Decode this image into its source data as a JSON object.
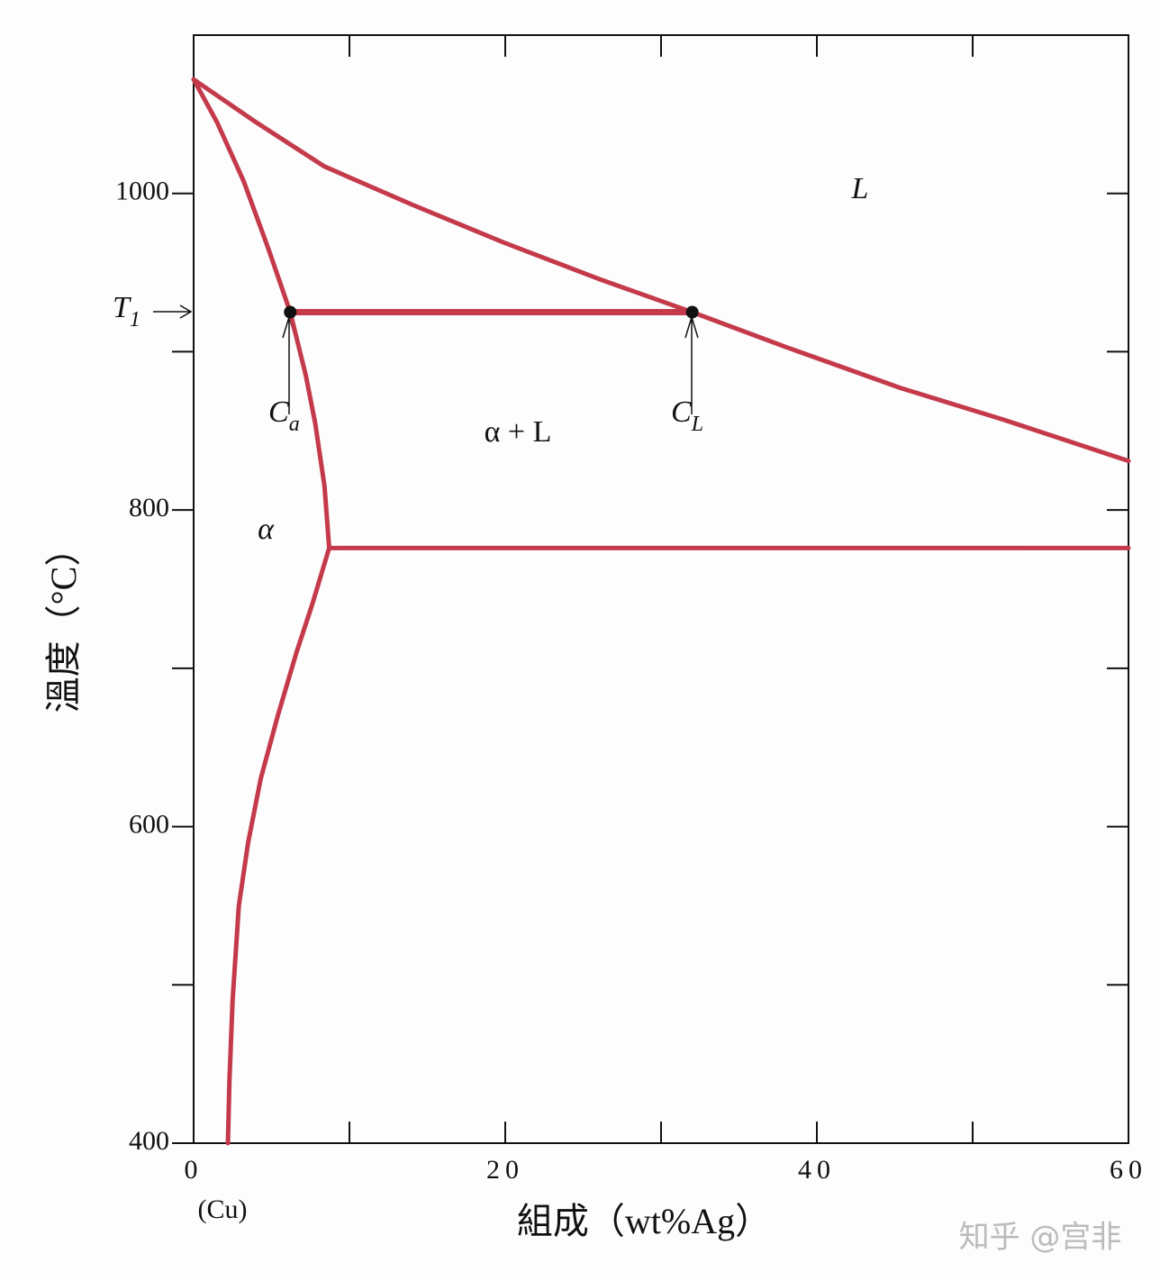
{
  "chart_data": {
    "type": "line",
    "x_label": "組成（wt%Ag）",
    "y_label": "溫度（°C）",
    "x_origin_note": "(Cu)",
    "xlim": [
      0,
      60
    ],
    "ylim": [
      400,
      1100
    ],
    "xticks": [
      0,
      20,
      40,
      60
    ],
    "xminor_ticks": [
      10,
      30,
      50
    ],
    "yticks": [
      400,
      600,
      800,
      1000
    ],
    "yminor_ticks": [
      500,
      700,
      900
    ],
    "color": "#c43a4b",
    "lines": [
      {
        "x": [
          0,
          4,
          8.4,
          14,
          19.9,
          26,
          32,
          38,
          45.4,
          52,
          60
        ],
        "values": [
          1072,
          1045,
          1017,
          993,
          969,
          946,
          925,
          903,
          877,
          857,
          831
        ],
        "width": 5
      },
      {
        "x": [
          0,
          1.5,
          3.2,
          4.8,
          6.2,
          7.2,
          7.8,
          8.4,
          8.7
        ],
        "values": [
          1072,
          1045,
          1008,
          965,
          925,
          885,
          855,
          815,
          776
        ],
        "width": 5
      },
      {
        "x": [
          8.7,
          7.6,
          6.6,
          5.4,
          4.3,
          3.5,
          2.9,
          2.5,
          2.3,
          2.2
        ],
        "values": [
          776,
          740,
          710,
          670,
          630,
          590,
          550,
          490,
          440,
          400
        ],
        "width": 5
      },
      {
        "x": [
          8.7,
          60
        ],
        "values": [
          776,
          776
        ],
        "width": 5
      },
      {
        "x": [
          6.2,
          32
        ],
        "values": [
          925,
          925
        ],
        "width": 7,
        "points": true
      }
    ],
    "annotations": [
      {
        "text": "T",
        "sub": "1"
      },
      {
        "text": "C",
        "sub": "a"
      },
      {
        "text": "C",
        "sub": "L"
      },
      {
        "text": "α + L"
      },
      {
        "text": "α"
      },
      {
        "text": "L"
      }
    ]
  },
  "watermark": "知乎 @宫非"
}
